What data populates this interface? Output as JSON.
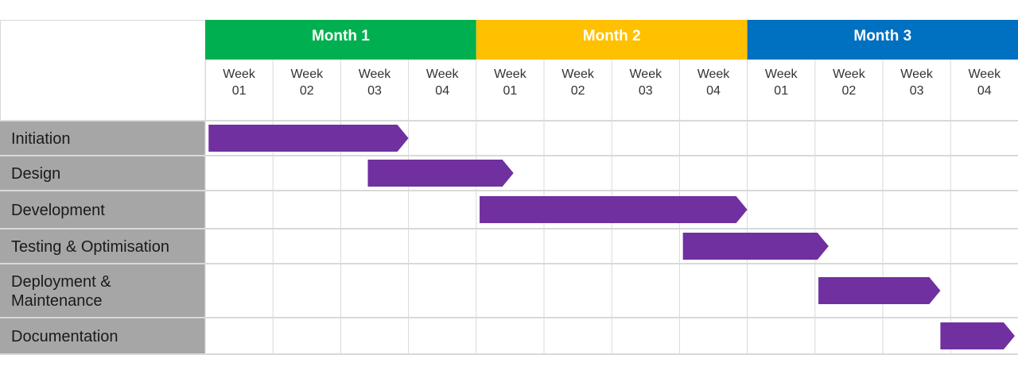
{
  "chart_data": {
    "type": "gantt",
    "months": [
      {
        "label": "Month 1",
        "color": "#00b050"
      },
      {
        "label": "Month 2",
        "color": "#ffc000"
      },
      {
        "label": "Month 3",
        "color": "#0070c0"
      }
    ],
    "weeks": [
      {
        "top": "Week",
        "bottom": "01"
      },
      {
        "top": "Week",
        "bottom": "02"
      },
      {
        "top": "Week",
        "bottom": "03"
      },
      {
        "top": "Week",
        "bottom": "04"
      },
      {
        "top": "Week",
        "bottom": "01"
      },
      {
        "top": "Week",
        "bottom": "02"
      },
      {
        "top": "Week",
        "bottom": "03"
      },
      {
        "top": "Week",
        "bottom": "04"
      },
      {
        "top": "Week",
        "bottom": "01"
      },
      {
        "top": "Week",
        "bottom": "02"
      },
      {
        "top": "Week",
        "bottom": "03"
      },
      {
        "top": "Week",
        "bottom": "04"
      }
    ],
    "tasks": [
      {
        "name": [
          "Initiation"
        ],
        "start_week": 0.05,
        "end_week": 3.0
      },
      {
        "name": [
          "Design"
        ],
        "start_week": 2.4,
        "end_week": 4.55
      },
      {
        "name": [
          "Development"
        ],
        "start_week": 4.05,
        "end_week": 8.0
      },
      {
        "name": [
          "Testing & Optimisation"
        ],
        "start_week": 7.05,
        "end_week": 9.2
      },
      {
        "name": [
          "Deployment &",
          "Maintenance"
        ],
        "start_week": 9.05,
        "end_week": 10.85
      },
      {
        "name": [
          "Documentation"
        ],
        "start_week": 10.85,
        "end_week": 12.0
      }
    ],
    "bar_color": "#7030a0",
    "label_bg_color": "#a6a6a6",
    "grid_color": "#d9d9d9"
  }
}
